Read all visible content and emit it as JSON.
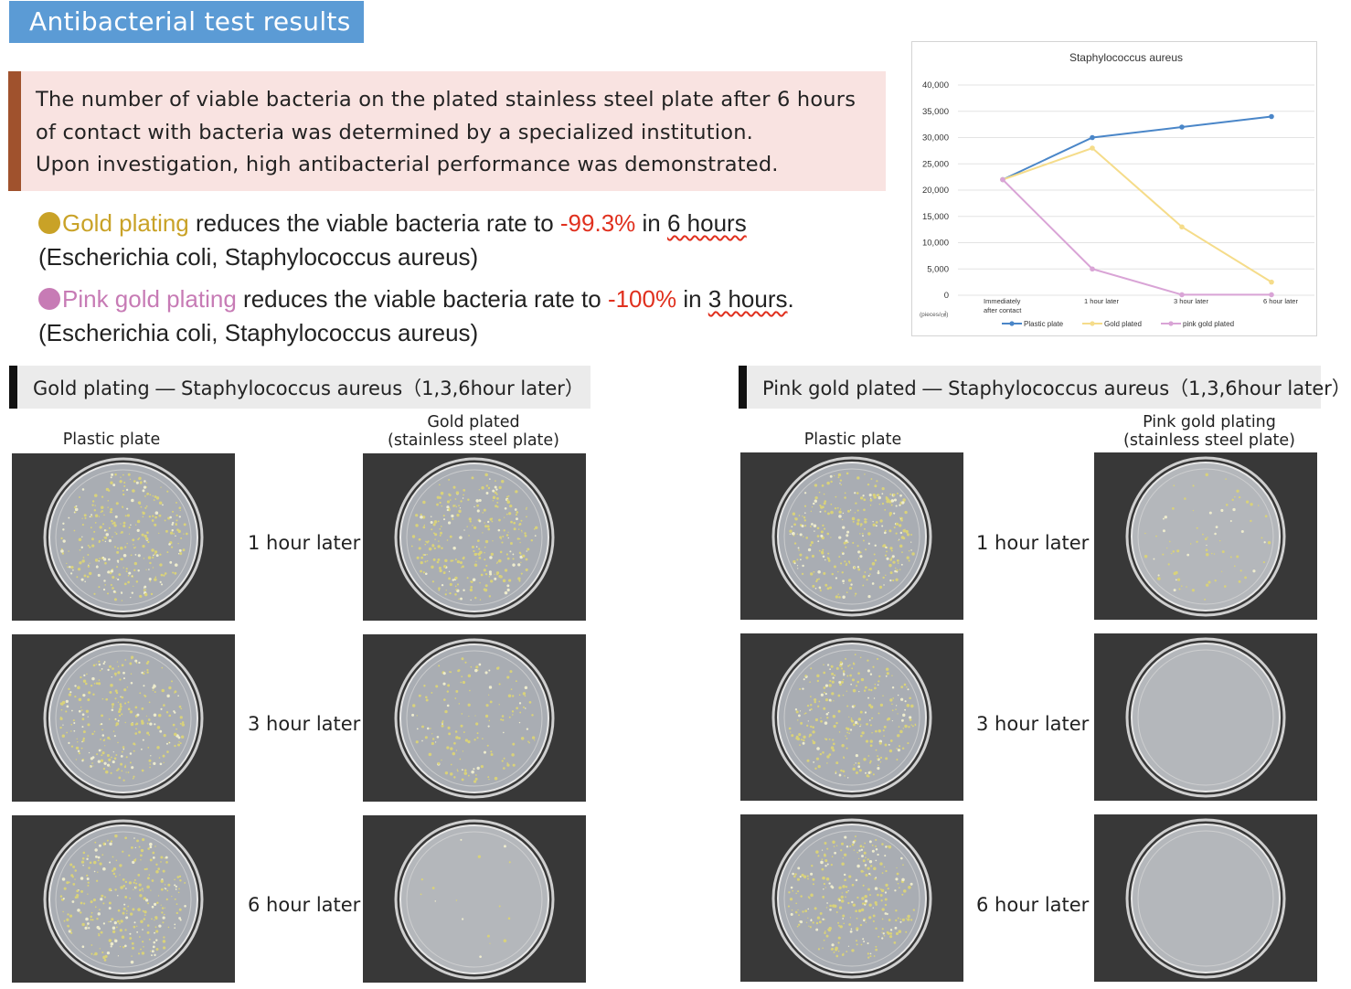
{
  "title": "Antibacterial test results",
  "intro": {
    "lines": [
      "The number of viable bacteria on the plated stainless steel plate after 6 hours",
      "of contact with bacteria was determined by a specialized institution.",
      "Upon investigation, high antibacterial performance was demonstrated."
    ]
  },
  "claims": {
    "gold": {
      "name": "Gold plating",
      "text": " reduces the viable bacteria rate to ",
      "rate": "-99.3%",
      "in": " in ",
      "time": "6 hours",
      "bacteria": "(Escherichia coli, Staphylococcus aureus)",
      "color": "#c9a227"
    },
    "pink": {
      "name": "Pink gold plating",
      "text": " reduces the viable bacteria rate to ",
      "rate": "-100%",
      "in": " in ",
      "time": "3 hours",
      "end": ".",
      "bacteria": "(Escherichia coli, Staphylococcus aureus)",
      "color": "#c77bb5"
    },
    "rate_color": "#e0301e"
  },
  "chart_data": {
    "type": "line",
    "title": "Staphylococcus aureus",
    "unit_label": "(pieces/㎠)",
    "x": [
      "Immediately after contact",
      "1 hour later",
      "3 hour later",
      "6 hour later"
    ],
    "x_tick_labels": [
      [
        "Immediately",
        "after contact"
      ],
      [
        "1 hour later"
      ],
      [
        "3 hour later"
      ],
      [
        "6 hour later"
      ]
    ],
    "y_ticks": [
      "40,000",
      "35,000",
      "30,000",
      "25,000",
      "20,000",
      "15,000",
      "10,000",
      "5,000",
      "0"
    ],
    "ylim": [
      0,
      40000
    ],
    "grid": true,
    "legend": "bottom",
    "series": [
      {
        "name": "Plastic plate",
        "color": "#4a86c8",
        "values": [
          22000,
          30000,
          32000,
          34000
        ]
      },
      {
        "name": "Gold plated",
        "color": "#f5dc8a",
        "values": [
          22000,
          28000,
          13000,
          2500
        ]
      },
      {
        "name": "pink gold plated",
        "color": "#d9a4d6",
        "values": [
          22000,
          5000,
          100,
          100
        ]
      }
    ]
  },
  "sections": [
    {
      "heading": "Gold plating ― Staphylococcus aureus（1,3,6hour later）",
      "control_label": "Plastic plate",
      "treated_label_1": "Gold plated",
      "treated_label_2": "(stainless steel plate)",
      "rows": [
        {
          "label": "1 hour later",
          "control_density": 1.0,
          "treated_density": 0.95
        },
        {
          "label": "3 hour later",
          "control_density": 0.9,
          "treated_density": 0.5
        },
        {
          "label": "6 hour later",
          "control_density": 0.95,
          "treated_density": 0.05
        }
      ]
    },
    {
      "heading": "Pink gold plated ― Staphylococcus aureus（1,3,6hour later）",
      "control_label": "Plastic plate",
      "treated_label_1": "Pink gold plating",
      "treated_label_2": "(stainless steel plate)",
      "rows": [
        {
          "label": "1 hour later",
          "control_density": 1.0,
          "treated_density": 0.25
        },
        {
          "label": "3 hour later",
          "control_density": 0.9,
          "treated_density": 0
        },
        {
          "label": "6 hour later",
          "control_density": 0.95,
          "treated_density": 0
        }
      ]
    }
  ]
}
